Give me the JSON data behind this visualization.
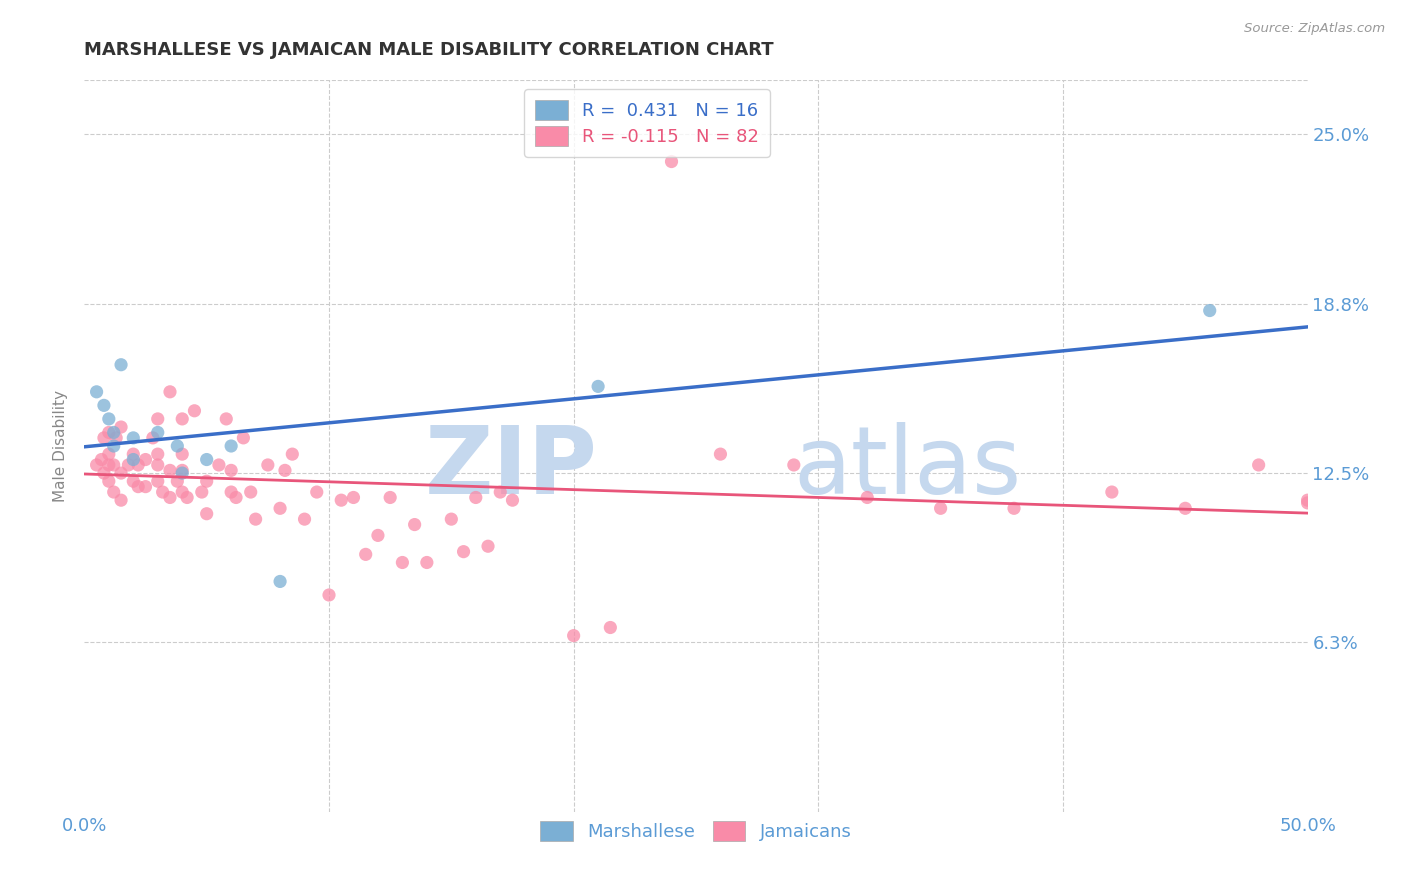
{
  "title": "MARSHALLESE VS JAMAICAN MALE DISABILITY CORRELATION CHART",
  "source": "Source: ZipAtlas.com",
  "xlabel": "",
  "ylabel": "Male Disability",
  "xlim": [
    0.0,
    0.5
  ],
  "ylim": [
    0.0,
    0.27
  ],
  "xticks": [
    0.0,
    0.1,
    0.2,
    0.3,
    0.4,
    0.5
  ],
  "xtick_labels": [
    "0.0%",
    "",
    "",
    "",
    "",
    "50.0%"
  ],
  "yticks": [
    0.0,
    0.0625,
    0.125,
    0.1875,
    0.25
  ],
  "ytick_labels": [
    "",
    "6.3%",
    "12.5%",
    "18.8%",
    "25.0%"
  ],
  "marshallese_color": "#7BAFD4",
  "jamaicans_color": "#F98BA8",
  "marshallese_line_color": "#3A6EC8",
  "jamaicans_line_color": "#E8557A",
  "marshallese_R": 0.431,
  "marshallese_N": 16,
  "jamaicans_R": -0.115,
  "jamaicans_N": 82,
  "watermark_zip": "ZIP",
  "watermark_atlas": "atlas",
  "watermark_color": "#C5D8EE",
  "grid_color": "#CCCCCC",
  "title_color": "#333333",
  "axis_label_color": "#888888",
  "tick_label_color": "#5B9BD5",
  "marshallese_x": [
    0.005,
    0.008,
    0.01,
    0.012,
    0.012,
    0.015,
    0.02,
    0.02,
    0.03,
    0.038,
    0.04,
    0.05,
    0.06,
    0.08,
    0.21,
    0.46
  ],
  "marshallese_y": [
    0.155,
    0.15,
    0.145,
    0.14,
    0.135,
    0.165,
    0.138,
    0.13,
    0.14,
    0.135,
    0.125,
    0.13,
    0.135,
    0.085,
    0.157,
    0.185
  ],
  "jamaicans_x": [
    0.005,
    0.007,
    0.008,
    0.008,
    0.01,
    0.01,
    0.01,
    0.01,
    0.012,
    0.012,
    0.013,
    0.015,
    0.015,
    0.015,
    0.018,
    0.02,
    0.02,
    0.022,
    0.022,
    0.025,
    0.025,
    0.028,
    0.03,
    0.03,
    0.03,
    0.03,
    0.032,
    0.035,
    0.035,
    0.035,
    0.038,
    0.04,
    0.04,
    0.04,
    0.04,
    0.042,
    0.045,
    0.048,
    0.05,
    0.05,
    0.055,
    0.058,
    0.06,
    0.06,
    0.062,
    0.065,
    0.068,
    0.07,
    0.075,
    0.08,
    0.082,
    0.085,
    0.09,
    0.095,
    0.1,
    0.105,
    0.11,
    0.115,
    0.12,
    0.125,
    0.13,
    0.135,
    0.14,
    0.15,
    0.155,
    0.16,
    0.165,
    0.17,
    0.175,
    0.2,
    0.215,
    0.24,
    0.26,
    0.29,
    0.32,
    0.35,
    0.38,
    0.42,
    0.45,
    0.48,
    0.5,
    0.5
  ],
  "jamaicans_y": [
    0.128,
    0.13,
    0.125,
    0.138,
    0.122,
    0.128,
    0.132,
    0.14,
    0.118,
    0.128,
    0.138,
    0.115,
    0.125,
    0.142,
    0.128,
    0.122,
    0.132,
    0.12,
    0.128,
    0.12,
    0.13,
    0.138,
    0.122,
    0.128,
    0.132,
    0.145,
    0.118,
    0.116,
    0.126,
    0.155,
    0.122,
    0.118,
    0.126,
    0.132,
    0.145,
    0.116,
    0.148,
    0.118,
    0.11,
    0.122,
    0.128,
    0.145,
    0.118,
    0.126,
    0.116,
    0.138,
    0.118,
    0.108,
    0.128,
    0.112,
    0.126,
    0.132,
    0.108,
    0.118,
    0.08,
    0.115,
    0.116,
    0.095,
    0.102,
    0.116,
    0.092,
    0.106,
    0.092,
    0.108,
    0.096,
    0.116,
    0.098,
    0.118,
    0.115,
    0.065,
    0.068,
    0.24,
    0.132,
    0.128,
    0.116,
    0.112,
    0.112,
    0.118,
    0.112,
    0.128,
    0.115,
    0.114
  ]
}
